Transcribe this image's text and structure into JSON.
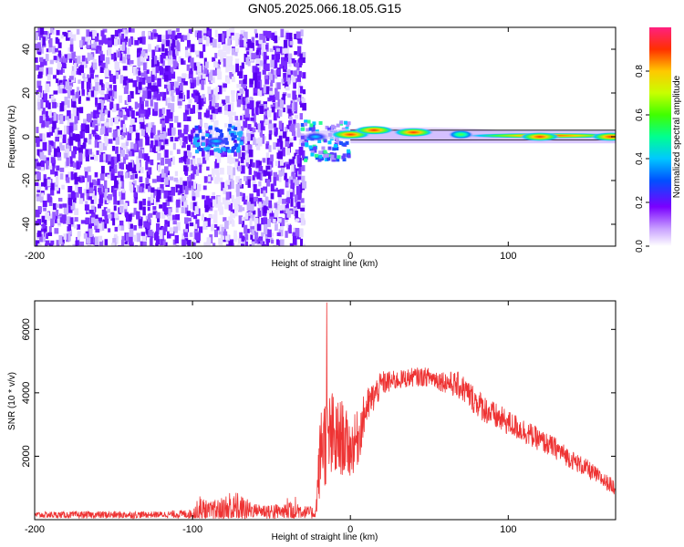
{
  "title": "GN05.2025.066.18.05.G15",
  "chart_data": [
    {
      "type": "heatmap",
      "xlabel": "Height of straight line (km)",
      "ylabel": "Frequency (Hz)",
      "xlim": [
        -200,
        168
      ],
      "ylim": [
        -50,
        50
      ],
      "x_ticks": [
        -200,
        -100,
        0,
        100
      ],
      "y_ticks": [
        -40,
        -20,
        0,
        20,
        40
      ],
      "colorbar": {
        "label": "Normalized spectral amplitude",
        "range": [
          0,
          1
        ],
        "ticks": [
          "0.0",
          "0.2",
          "0.4",
          "0.6",
          "0.8"
        ]
      },
      "description_points": [
        {
          "x": -85,
          "y": -2,
          "amplitude": 0.25
        },
        {
          "x": -22,
          "y": 0,
          "amplitude": 0.3
        },
        {
          "x": 0,
          "y": 1,
          "amplitude": 0.85
        },
        {
          "x": 15,
          "y": 3,
          "amplitude": 0.9
        },
        {
          "x": 40,
          "y": 2,
          "amplitude": 1.0
        },
        {
          "x": 70,
          "y": 1,
          "amplitude": 0.6
        },
        {
          "x": 120,
          "y": 0,
          "amplitude": 0.95
        },
        {
          "x": 165,
          "y": 0,
          "amplitude": 0.95
        }
      ]
    },
    {
      "type": "line",
      "xlabel": "Height of straight line (km)",
      "ylabel": "SNR (10 * v/v)",
      "xlim": [
        -200,
        168
      ],
      "ylim": [
        0,
        6900
      ],
      "x_ticks": [
        -200,
        -100,
        0,
        100
      ],
      "y_ticks": [
        2000,
        4000,
        6000
      ],
      "color": "#ee3333",
      "envelope": {
        "x": [
          -200,
          -150,
          -120,
          -100,
          -95,
          -90,
          -80,
          -75,
          -70,
          -60,
          -50,
          -42,
          -38,
          -30,
          -22,
          -20,
          -18,
          -15,
          -12,
          -10,
          -5,
          0,
          5,
          10,
          20,
          30,
          40,
          50,
          60,
          70,
          80,
          90,
          100,
          110,
          120,
          130,
          140,
          150,
          160,
          168
        ],
        "base": [
          150,
          150,
          160,
          180,
          300,
          250,
          300,
          350,
          300,
          300,
          250,
          250,
          350,
          250,
          200,
          1500,
          2600,
          2400,
          2600,
          2400,
          2600,
          2200,
          2600,
          3500,
          4300,
          4400,
          4500,
          4500,
          4350,
          4200,
          3700,
          3300,
          3050,
          2800,
          2500,
          2250,
          1900,
          1600,
          1250,
          1000
        ],
        "noise": [
          100,
          120,
          100,
          150,
          500,
          300,
          450,
          700,
          500,
          200,
          300,
          200,
          600,
          200,
          200,
          1000,
          1600,
          1400,
          1600,
          1400,
          1200,
          900,
          900,
          600,
          400,
          300,
          300,
          300,
          350,
          450,
          450,
          450,
          400,
          400,
          350,
          350,
          300,
          300,
          250,
          250
        ]
      },
      "peak": {
        "x": -15,
        "y": 6850
      }
    }
  ]
}
